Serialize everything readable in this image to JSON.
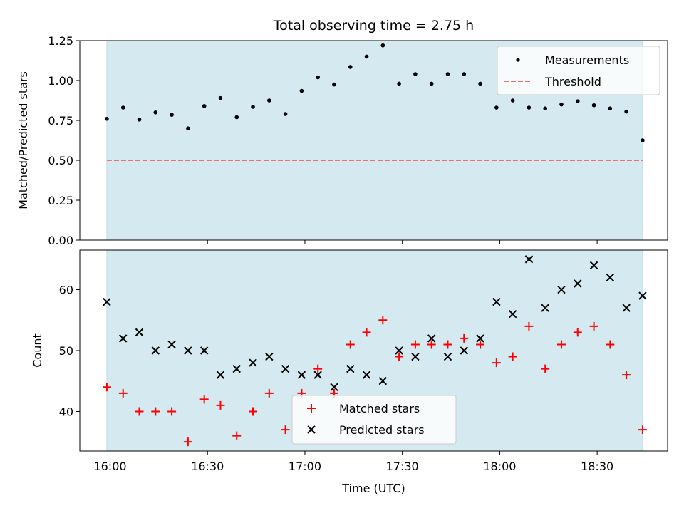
{
  "chart_data": [
    {
      "type": "scatter",
      "title": "Total observing time = 2.75 h",
      "xlabel": "",
      "ylabel": "Matched/Predicted stars",
      "ylim": [
        0,
        1.25
      ],
      "yticks": [
        "0.00",
        "0.25",
        "0.50",
        "0.75",
        "1.00",
        "1.25"
      ],
      "shaded_band": {
        "color": "#d4eaf0",
        "x_start": "15:59",
        "x_end": "18:44"
      },
      "legend": {
        "placement": "top-right",
        "entries": [
          "Measurements",
          "Threshold"
        ]
      },
      "threshold": {
        "name": "Threshold",
        "value": 0.5,
        "color": "#f07070",
        "style": "dashed"
      },
      "series": [
        {
          "name": "Measurements",
          "color": "#000000",
          "marker": "dot",
          "x": [
            "15:59",
            "16:04",
            "16:09",
            "16:14",
            "16:19",
            "16:24",
            "16:29",
            "16:34",
            "16:39",
            "16:44",
            "16:49",
            "16:54",
            "16:59",
            "17:04",
            "17:09",
            "17:14",
            "17:19",
            "17:24",
            "17:29",
            "17:34",
            "17:39",
            "17:44",
            "17:49",
            "17:54",
            "17:59",
            "18:04",
            "18:09",
            "18:14",
            "18:19",
            "18:24",
            "18:29",
            "18:34",
            "18:39",
            "18:44"
          ],
          "values": [
            0.76,
            0.83,
            0.755,
            0.8,
            0.785,
            0.7,
            0.84,
            0.89,
            0.77,
            0.835,
            0.875,
            0.79,
            0.935,
            1.02,
            0.975,
            1.085,
            1.15,
            1.22,
            0.98,
            1.04,
            0.98,
            1.04,
            1.04,
            0.98,
            0.83,
            0.875,
            0.83,
            0.825,
            0.85,
            0.87,
            0.845,
            0.825,
            0.805,
            0.625
          ]
        }
      ]
    },
    {
      "type": "scatter",
      "title": "",
      "xlabel": "Time (UTC)",
      "ylabel": "Count",
      "ylim": [
        33.5,
        66.5
      ],
      "yticks": [
        "40",
        "50",
        "60"
      ],
      "xticks": [
        "16:00",
        "16:30",
        "17:00",
        "17:30",
        "18:00",
        "18:30"
      ],
      "shaded_band": {
        "color": "#d4eaf0",
        "x_start": "15:59",
        "x_end": "18:44"
      },
      "legend": {
        "placement": "bottom-center",
        "entries": [
          "Matched stars",
          "Predicted stars"
        ]
      },
      "series": [
        {
          "name": "Matched stars",
          "color": "#ff0000",
          "marker": "plus",
          "x": [
            "15:59",
            "16:04",
            "16:09",
            "16:14",
            "16:19",
            "16:24",
            "16:29",
            "16:34",
            "16:39",
            "16:44",
            "16:49",
            "16:54",
            "16:59",
            "17:04",
            "17:09",
            "17:14",
            "17:19",
            "17:24",
            "17:29",
            "17:34",
            "17:39",
            "17:44",
            "17:49",
            "17:54",
            "17:59",
            "18:04",
            "18:09",
            "18:14",
            "18:19",
            "18:24",
            "18:29",
            "18:34",
            "18:39",
            "18:44"
          ],
          "values": [
            44,
            43,
            40,
            40,
            40,
            35,
            42,
            41,
            36,
            40,
            43,
            37,
            43,
            47,
            43,
            51,
            53,
            55,
            49,
            51,
            51,
            51,
            52,
            51,
            48,
            49,
            54,
            47,
            51,
            53,
            54,
            51,
            46,
            37
          ]
        },
        {
          "name": "Predicted stars",
          "color": "#000000",
          "marker": "x",
          "x": [
            "15:59",
            "16:04",
            "16:09",
            "16:14",
            "16:19",
            "16:24",
            "16:29",
            "16:34",
            "16:39",
            "16:44",
            "16:49",
            "16:54",
            "16:59",
            "17:04",
            "17:09",
            "17:14",
            "17:19",
            "17:24",
            "17:29",
            "17:34",
            "17:39",
            "17:44",
            "17:49",
            "17:54",
            "17:59",
            "18:04",
            "18:09",
            "18:14",
            "18:19",
            "18:24",
            "18:29",
            "18:34",
            "18:39",
            "18:44"
          ],
          "values": [
            58,
            52,
            53,
            50,
            51,
            50,
            50,
            46,
            47,
            48,
            49,
            47,
            46,
            46,
            44,
            47,
            46,
            45,
            50,
            49,
            52,
            49,
            50,
            52,
            58,
            56,
            65,
            57,
            60,
            61,
            64,
            62,
            57,
            59
          ]
        }
      ]
    }
  ]
}
